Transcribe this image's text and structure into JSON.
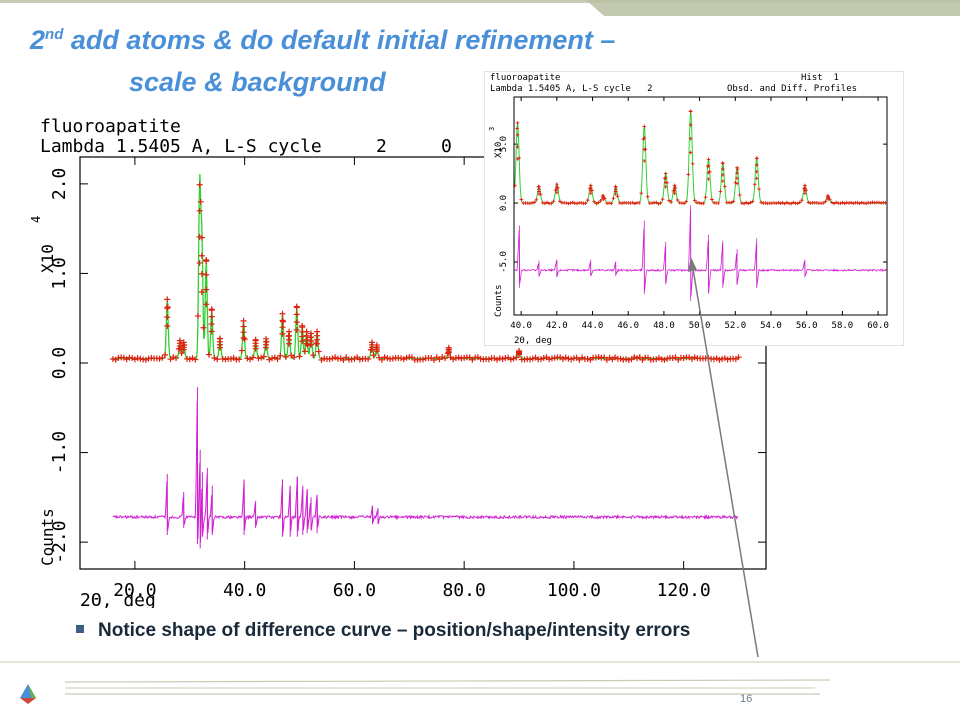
{
  "slide": {
    "title_pre": "2",
    "title_sup": "nd",
    "title_line1_rest": " add atoms & do default initial refinement –",
    "title_line2": "scale & background",
    "bullet": "Notice shape of difference curve – position/shape/intensity errors",
    "page_number": "16",
    "colors": {
      "title": "#4a90d9",
      "header_bar": "#b8bfa0",
      "footer_line": "#c7cdb2",
      "arrow": "#7a7a7a"
    }
  },
  "chart_data": [
    {
      "type": "line",
      "header_line1": "fluoroapatite",
      "header_line2": "Lambda 1.5405 A, L-S cycle     2     0",
      "xlabel": "2Θ, deg",
      "ylabel": "Counts",
      "y_multiplier": "X10",
      "y_exponent": "4",
      "xlim": [
        10,
        135
      ],
      "ylim": [
        -2.3,
        2.3
      ],
      "x_ticks": [
        "20.0",
        "40.0",
        "60.0",
        "80.0",
        "100.0",
        "120.0"
      ],
      "y_ticks": [
        "2.0",
        "1.0",
        "0.0",
        "-1.0",
        "-2.0"
      ],
      "background": 0.05,
      "difference_offset": -1.72,
      "series": [],
      "peaks": [
        {
          "x": 25.9,
          "h": 0.66
        },
        {
          "x": 28.2,
          "h": 0.2
        },
        {
          "x": 28.9,
          "h": 0.18
        },
        {
          "x": 31.8,
          "h": 1.94
        },
        {
          "x": 32.2,
          "h": 1.35
        },
        {
          "x": 33.0,
          "h": 1.1
        },
        {
          "x": 34.0,
          "h": 0.55
        },
        {
          "x": 35.5,
          "h": 0.22
        },
        {
          "x": 39.8,
          "h": 0.42
        },
        {
          "x": 42.0,
          "h": 0.2
        },
        {
          "x": 43.9,
          "h": 0.22
        },
        {
          "x": 46.9,
          "h": 0.5
        },
        {
          "x": 48.1,
          "h": 0.3
        },
        {
          "x": 49.5,
          "h": 0.58
        },
        {
          "x": 50.5,
          "h": 0.35
        },
        {
          "x": 51.3,
          "h": 0.3
        },
        {
          "x": 52.1,
          "h": 0.28
        },
        {
          "x": 53.2,
          "h": 0.3
        },
        {
          "x": 63.2,
          "h": 0.18
        },
        {
          "x": 64.1,
          "h": 0.15
        },
        {
          "x": 77.2,
          "h": 0.12
        },
        {
          "x": 90.0,
          "h": 0.08
        }
      ],
      "diff_spikes": [
        {
          "x": 25.9,
          "up": 0.48,
          "down": 0.2
        },
        {
          "x": 28.9,
          "up": 0.28,
          "down": 0.12
        },
        {
          "x": 31.4,
          "up": 1.45,
          "down": 0.3
        },
        {
          "x": 31.9,
          "up": 0.75,
          "down": 0.35
        },
        {
          "x": 32.3,
          "up": 0.5,
          "down": 0.22
        },
        {
          "x": 33.2,
          "up": 0.55,
          "down": 0.25
        },
        {
          "x": 34.1,
          "up": 0.35,
          "down": 0.2
        },
        {
          "x": 39.9,
          "up": 0.42,
          "down": 0.2
        },
        {
          "x": 42.0,
          "up": 0.18,
          "down": 0.12
        },
        {
          "x": 46.9,
          "up": 0.42,
          "down": 0.22
        },
        {
          "x": 48.3,
          "up": 0.35,
          "down": 0.22
        },
        {
          "x": 49.6,
          "up": 0.45,
          "down": 0.22
        },
        {
          "x": 50.6,
          "up": 0.35,
          "down": 0.2
        },
        {
          "x": 51.4,
          "up": 0.3,
          "down": 0.18
        },
        {
          "x": 52.1,
          "up": 0.22,
          "down": 0.15
        },
        {
          "x": 53.2,
          "up": 0.25,
          "down": 0.18
        },
        {
          "x": 63.3,
          "up": 0.12,
          "down": 0.08
        },
        {
          "x": 64.3,
          "up": 0.1,
          "down": 0.08
        }
      ]
    },
    {
      "type": "line",
      "header_line1": "fluoroapatite",
      "header_right1": "Hist  1",
      "header_line2": "Lambda 1.5405 A, L-S cycle   2",
      "header_right2": "Obsd. and Diff. Profiles",
      "xlabel": "2Θ, deg",
      "ylabel": "Counts",
      "y_multiplier": "X10",
      "y_exponent": "3",
      "xlim": [
        39.6,
        60.5
      ],
      "ylim": [
        -9.5,
        9.0
      ],
      "x_ticks": [
        "40.0",
        "42.0",
        "44.0",
        "46.0",
        "48.0",
        "50.0",
        "52.0",
        "54.0",
        "56.0",
        "58.0",
        "60.0"
      ],
      "y_ticks": [
        "5.0",
        "0.0",
        "-5.0"
      ],
      "background": 0.0,
      "difference_offset": -5.7,
      "series": [],
      "peaks": [
        {
          "x": 39.8,
          "h": 6.8
        },
        {
          "x": 41.0,
          "h": 1.4
        },
        {
          "x": 42.0,
          "h": 1.6
        },
        {
          "x": 43.9,
          "h": 1.5
        },
        {
          "x": 44.6,
          "h": 0.6
        },
        {
          "x": 45.3,
          "h": 1.4
        },
        {
          "x": 46.9,
          "h": 6.5
        },
        {
          "x": 48.1,
          "h": 2.5
        },
        {
          "x": 48.6,
          "h": 1.5
        },
        {
          "x": 49.5,
          "h": 7.8
        },
        {
          "x": 50.5,
          "h": 3.7
        },
        {
          "x": 51.3,
          "h": 3.4
        },
        {
          "x": 52.1,
          "h": 3.0
        },
        {
          "x": 53.2,
          "h": 3.8
        },
        {
          "x": 55.9,
          "h": 1.5
        },
        {
          "x": 57.2,
          "h": 0.6
        }
      ],
      "diff_spikes": [
        {
          "x": 39.9,
          "up": 3.8,
          "down": 1.5
        },
        {
          "x": 41.0,
          "up": 0.8,
          "down": 0.5
        },
        {
          "x": 42.0,
          "up": 0.9,
          "down": 0.6
        },
        {
          "x": 43.9,
          "up": 0.9,
          "down": 0.5
        },
        {
          "x": 45.3,
          "up": 0.7,
          "down": 0.5
        },
        {
          "x": 46.9,
          "up": 4.2,
          "down": 2.0
        },
        {
          "x": 48.1,
          "up": 2.4,
          "down": 1.2
        },
        {
          "x": 49.5,
          "up": 5.5,
          "down": 2.6
        },
        {
          "x": 50.5,
          "up": 3.0,
          "down": 2.0
        },
        {
          "x": 51.3,
          "up": 2.5,
          "down": 1.5
        },
        {
          "x": 52.1,
          "up": 1.8,
          "down": 1.2
        },
        {
          "x": 53.2,
          "up": 2.7,
          "down": 1.5
        },
        {
          "x": 55.9,
          "up": 0.9,
          "down": 0.6
        }
      ]
    }
  ]
}
